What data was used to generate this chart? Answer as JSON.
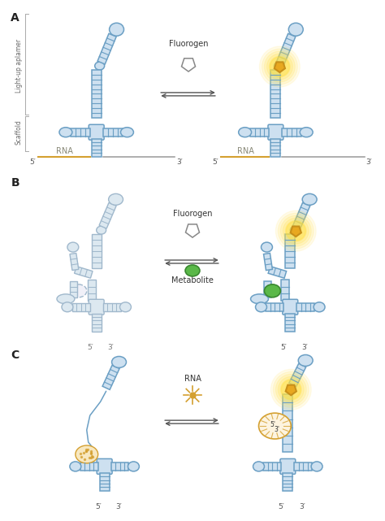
{
  "bg_color": "#ffffff",
  "sc": "#6b9fc4",
  "sf": "#cde0f0",
  "sc_faded": "#a0b8cc",
  "sf_faded": "#dce8f0",
  "sc_dark": "#4a7fa0",
  "rna_orange": "#d4a030",
  "fluoro_color": "#c8901a",
  "fluoro_fill": "#e8a820",
  "metab_color": "#3a8830",
  "metab_fill": "#5ab848",
  "glow_color": "#ffe040",
  "text_dark": "#333333",
  "text_mid": "#555555",
  "label_5p": "5′",
  "label_3p": "3′",
  "label_RNA": "RNA",
  "label_Fluorogen": "Fluorogen",
  "label_Metabolite": "Metabolite",
  "label_lightup": "Light-up aplamer",
  "label_scaffold": "Scaffold"
}
